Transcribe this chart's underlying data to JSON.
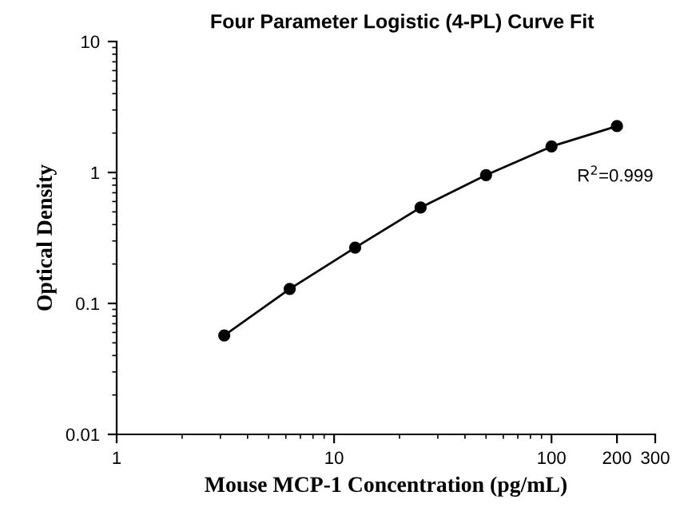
{
  "chart_data": {
    "type": "line",
    "title": "Four Parameter Logistic (4-PL) Curve Fit",
    "xlabel": "Mouse MCP-1 Concentration (pg/mL)",
    "ylabel": "Optical Density",
    "x": [
      3.125,
      6.25,
      12.5,
      25,
      50,
      100,
      200
    ],
    "series": [
      {
        "color": "#000000",
        "values": [
          0.057,
          0.129,
          0.267,
          0.54,
          0.955,
          1.58,
          2.26
        ]
      }
    ],
    "log": "xy",
    "xlim": [
      1,
      300
    ],
    "ylim": [
      0.01,
      10
    ],
    "xticks": [
      1,
      10,
      100,
      200,
      300
    ],
    "yticks": [
      0.01,
      0.1,
      1,
      10
    ],
    "marker": "circle",
    "line_style": "solid",
    "grid": false,
    "legend": false,
    "annotations": [
      "R$^{2}$=0.999"
    ]
  }
}
